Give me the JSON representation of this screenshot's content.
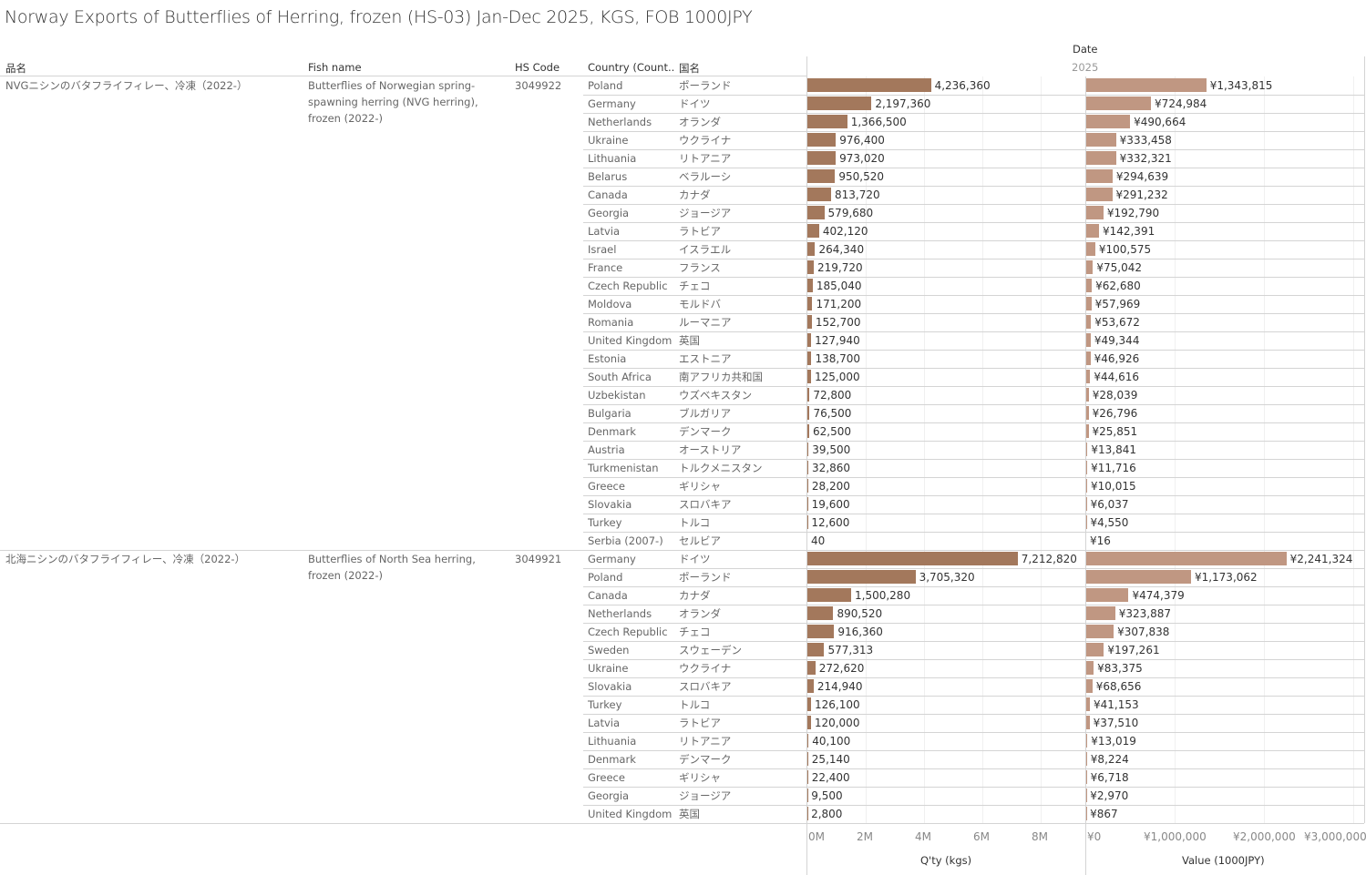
{
  "title": "Norway Exports of Butterflies of Herring, frozen (HS-03) Jan-Dec 2025, KGS, FOB 1000JPY",
  "headers": {
    "product_jp": "品名",
    "fish_name": "Fish name",
    "hs_code": "HS Code",
    "country": "Country (Count..",
    "country_jp": "国名",
    "date": "Date",
    "year": "2025"
  },
  "colors": {
    "qty_bar": "#a3785c",
    "value_bar": "#c09782"
  },
  "chart_data": {
    "type": "bar",
    "xlabel_qty": "Q'ty (kgs)",
    "xlabel_value": "Value (1000JPY)",
    "qty_ticks": [
      "0M",
      "2M",
      "4M",
      "6M",
      "8M"
    ],
    "value_ticks": [
      "¥0",
      "¥1,000,000",
      "¥2,000,000",
      "¥3,000,000"
    ],
    "groups": [
      {
        "product_jp": "NVGニシンのバタフライフィレー、冷凍（2022-）",
        "fish_name": "Butterflies of Norwegian spring-spawning herring (NVG herring), frozen (2022-)",
        "hs_code": "3049922",
        "rows": [
          [
            "Poland",
            "ポーランド",
            4236360,
            1343815
          ],
          [
            "Germany",
            "ドイツ",
            2197360,
            724984
          ],
          [
            "Netherlands",
            "オランダ",
            1366500,
            490664
          ],
          [
            "Ukraine",
            "ウクライナ",
            976400,
            333458
          ],
          [
            "Lithuania",
            "リトアニア",
            973020,
            332321
          ],
          [
            "Belarus",
            "ベラルーシ",
            950520,
            294639
          ],
          [
            "Canada",
            "カナダ",
            813720,
            291232
          ],
          [
            "Georgia",
            "ジョージア",
            579680,
            192790
          ],
          [
            "Latvia",
            "ラトビア",
            402120,
            142391
          ],
          [
            "Israel",
            "イスラエル",
            264340,
            100575
          ],
          [
            "France",
            "フランス",
            219720,
            75042
          ],
          [
            "Czech Republic",
            "チェコ",
            185040,
            62680
          ],
          [
            "Moldova",
            "モルドバ",
            171200,
            57969
          ],
          [
            "Romania",
            "ルーマニア",
            152700,
            53672
          ],
          [
            "United Kingdom",
            "英国",
            127940,
            49344
          ],
          [
            "Estonia",
            "エストニア",
            138700,
            46926
          ],
          [
            "South Africa",
            "南アフリカ共和国",
            125000,
            44616
          ],
          [
            "Uzbekistan",
            "ウズベキスタン",
            72800,
            28039
          ],
          [
            "Bulgaria",
            "ブルガリア",
            76500,
            26796
          ],
          [
            "Denmark",
            "デンマーク",
            62500,
            25851
          ],
          [
            "Austria",
            "オーストリア",
            39500,
            13841
          ],
          [
            "Turkmenistan",
            "トルクメニスタン",
            32860,
            11716
          ],
          [
            "Greece",
            "ギリシャ",
            28200,
            10015
          ],
          [
            "Slovakia",
            "スロバキア",
            19600,
            6037
          ],
          [
            "Turkey",
            "トルコ",
            12600,
            4550
          ],
          [
            "Serbia (2007-)",
            "セルビア",
            40,
            16
          ]
        ]
      },
      {
        "product_jp": "北海ニシンのバタフライフィレー、冷凍（2022-）",
        "fish_name": "Butterflies of North Sea herring, frozen (2022-)",
        "hs_code": "3049921",
        "rows": [
          [
            "Germany",
            "ドイツ",
            7212820,
            2241324
          ],
          [
            "Poland",
            "ポーランド",
            3705320,
            1173062
          ],
          [
            "Canada",
            "カナダ",
            1500280,
            474379
          ],
          [
            "Netherlands",
            "オランダ",
            890520,
            323887
          ],
          [
            "Czech Republic",
            "チェコ",
            916360,
            307838
          ],
          [
            "Sweden",
            "スウェーデン",
            577313,
            197261
          ],
          [
            "Ukraine",
            "ウクライナ",
            272620,
            83375
          ],
          [
            "Slovakia",
            "スロバキア",
            214940,
            68656
          ],
          [
            "Turkey",
            "トルコ",
            126100,
            41153
          ],
          [
            "Latvia",
            "ラトビア",
            120000,
            37510
          ],
          [
            "Lithuania",
            "リトアニア",
            40100,
            13019
          ],
          [
            "Denmark",
            "デンマーク",
            25140,
            8224
          ],
          [
            "Greece",
            "ギリシャ",
            22400,
            6718
          ],
          [
            "Georgia",
            "ジョージア",
            9500,
            2970
          ],
          [
            "United Kingdom",
            "英国",
            2800,
            867
          ]
        ]
      }
    ]
  }
}
